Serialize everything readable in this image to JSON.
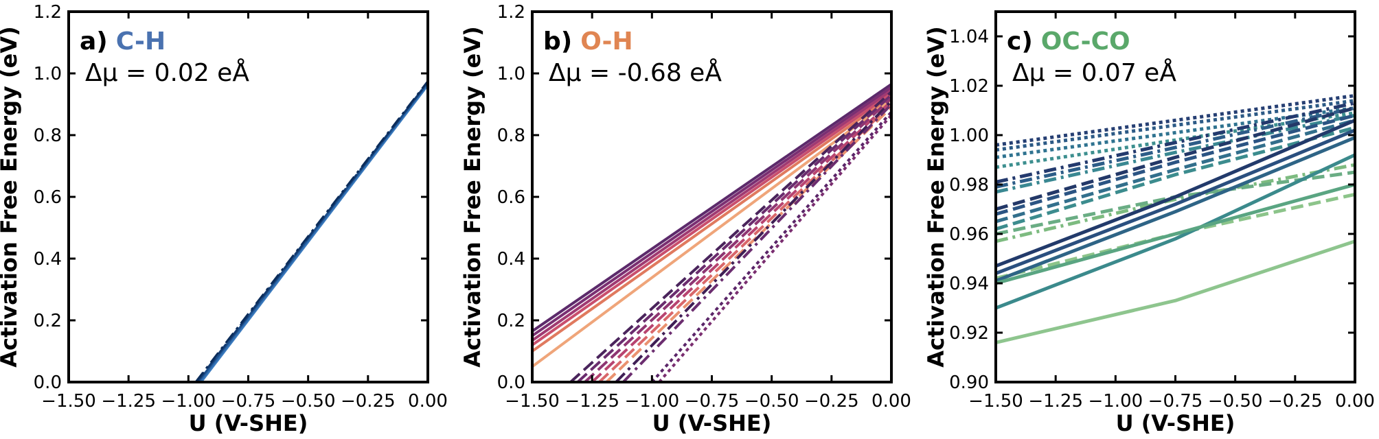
{
  "figure": {
    "panels": [
      {
        "id": "a",
        "letter": "a)",
        "bond": "C-H",
        "bond_color": "#4a72b0",
        "delta_mu": "Δμ = 0.02 eÅ",
        "ylabel": "Activation Free Energy (eV)",
        "xlabel": "U (V-SHE)"
      },
      {
        "id": "b",
        "letter": "b)",
        "bond": "O-H",
        "bond_color": "#e08552",
        "delta_mu": "Δμ = -0.68 eÅ",
        "ylabel": "Activation Free Energy (eV)",
        "xlabel": "U (V-SHE)"
      },
      {
        "id": "c",
        "letter": "c)",
        "bond": "OC-CO",
        "bond_color": "#5aa86a",
        "delta_mu": "Δμ = 0.07 eÅ",
        "ylabel": "Activation Free Energy (eV)",
        "xlabel": "U (V-SHE)"
      }
    ]
  },
  "chart_data": [
    {
      "type": "line",
      "panel": "a",
      "xlabel": "U (V-SHE)",
      "ylabel": "Activation Free Energy (eV)",
      "xlim": [
        -1.5,
        0.0
      ],
      "ylim": [
        0.0,
        1.2
      ],
      "xticks": [
        "−1.50",
        "−1.25",
        "−1.00",
        "−0.75",
        "−0.50",
        "−0.25",
        "0.00"
      ],
      "yticks": [
        "0.0",
        "0.2",
        "0.4",
        "0.6",
        "0.8",
        "1.0",
        "1.2"
      ],
      "grid": false,
      "series": [
        {
          "style": "solid",
          "color": "#3b7bbf",
          "width": 5,
          "x": [
            -0.95,
            0.0
          ],
          "y": [
            0.0,
            0.965
          ]
        },
        {
          "style": "solid",
          "color": "#2f6aab",
          "width": 4,
          "x": [
            -0.955,
            0.0
          ],
          "y": [
            0.0,
            0.968
          ]
        },
        {
          "style": "solid",
          "color": "#1c4f8c",
          "width": 3,
          "x": [
            -0.96,
            0.0
          ],
          "y": [
            0.0,
            0.97
          ]
        },
        {
          "style": "dashed",
          "color": "#123a70",
          "width": 3,
          "x": [
            -0.965,
            0.0
          ],
          "y": [
            0.0,
            0.972
          ]
        },
        {
          "style": "dashdot",
          "color": "#0b2c5a",
          "width": 3,
          "x": [
            -0.97,
            0.0
          ],
          "y": [
            0.0,
            0.975
          ]
        }
      ]
    },
    {
      "type": "line",
      "panel": "b",
      "xlabel": "U (V-SHE)",
      "ylabel": "Activation Free Energy (eV)",
      "xlim": [
        -1.5,
        0.0
      ],
      "ylim": [
        0.0,
        1.2
      ],
      "xticks": [
        "−1.50",
        "−1.25",
        "−1.00",
        "−0.75",
        "−0.50",
        "−0.25",
        "0.00"
      ],
      "yticks": [
        "0.0",
        "0.2",
        "0.4",
        "0.6",
        "0.8",
        "1.0",
        "1.2"
      ],
      "grid": false,
      "series": [
        {
          "style": "solid",
          "color": "#5c2a6b",
          "width": 4,
          "x": [
            -1.5,
            0.0
          ],
          "y": [
            0.165,
            0.965
          ]
        },
        {
          "style": "solid",
          "color": "#7a2f72",
          "width": 4,
          "x": [
            -1.5,
            0.0
          ],
          "y": [
            0.15,
            0.955
          ]
        },
        {
          "style": "solid",
          "color": "#a03a72",
          "width": 4,
          "x": [
            -1.5,
            0.0
          ],
          "y": [
            0.135,
            0.945
          ]
        },
        {
          "style": "solid",
          "color": "#c94f6d",
          "width": 4,
          "x": [
            -1.5,
            0.0
          ],
          "y": [
            0.12,
            0.935
          ]
        },
        {
          "style": "solid",
          "color": "#e07a5f",
          "width": 4,
          "x": [
            -1.5,
            0.0
          ],
          "y": [
            0.1,
            0.925
          ]
        },
        {
          "style": "solid",
          "color": "#efa57a",
          "width": 4,
          "x": [
            -1.5,
            0.0
          ],
          "y": [
            0.05,
            0.915
          ]
        },
        {
          "style": "dashed",
          "color": "#4a245c",
          "width": 4,
          "x": [
            -1.34,
            0.0
          ],
          "y": [
            0.0,
            0.94
          ]
        },
        {
          "style": "dashed",
          "color": "#6a2c6e",
          "width": 4,
          "x": [
            -1.31,
            0.0
          ],
          "y": [
            0.0,
            0.93
          ]
        },
        {
          "style": "dashed",
          "color": "#8e3572",
          "width": 4,
          "x": [
            -1.28,
            0.0
          ],
          "y": [
            0.0,
            0.92
          ]
        },
        {
          "style": "dashed",
          "color": "#b84470",
          "width": 4,
          "x": [
            -1.25,
            0.0
          ],
          "y": [
            0.0,
            0.91
          ]
        },
        {
          "style": "dashed",
          "color": "#d9676a",
          "width": 4,
          "x": [
            -1.22,
            0.0
          ],
          "y": [
            0.0,
            0.9
          ]
        },
        {
          "style": "dashed",
          "color": "#ea9270",
          "width": 4,
          "x": [
            -1.19,
            0.0
          ],
          "y": [
            0.0,
            0.89
          ]
        },
        {
          "style": "dashdot",
          "color": "#3f1f55",
          "width": 4,
          "x": [
            -1.15,
            0.0
          ],
          "y": [
            0.0,
            0.91
          ]
        },
        {
          "style": "dashdot",
          "color": "#6b2d6f",
          "width": 4,
          "x": [
            -1.12,
            0.0
          ],
          "y": [
            0.0,
            0.9
          ]
        },
        {
          "style": "dotted",
          "color": "#5a2568",
          "width": 4,
          "x": [
            -1.0,
            0.0
          ],
          "y": [
            0.0,
            0.875
          ]
        },
        {
          "style": "dotted",
          "color": "#7a2e70",
          "width": 4,
          "x": [
            -0.97,
            0.0
          ],
          "y": [
            0.0,
            0.865
          ]
        }
      ]
    },
    {
      "type": "line",
      "panel": "c",
      "xlabel": "U (V-SHE)",
      "ylabel": "Activation Free Energy (eV)",
      "xlim": [
        -1.5,
        0.0
      ],
      "ylim": [
        0.9,
        1.05
      ],
      "xticks": [
        "−1.50",
        "−1.25",
        "−1.00",
        "−0.75",
        "−0.50",
        "−0.25",
        "0.00"
      ],
      "yticks": [
        "0.90",
        "0.92",
        "0.94",
        "0.96",
        "0.98",
        "1.00",
        "1.02",
        "1.04"
      ],
      "grid": false,
      "series": [
        {
          "style": "dotted",
          "color": "#263f73",
          "width": 5,
          "x": [
            -1.5,
            -0.75,
            0.0
          ],
          "y": [
            0.996,
            1.006,
            1.016
          ]
        },
        {
          "style": "dotted",
          "color": "#2c5a86",
          "width": 5,
          "x": [
            -1.5,
            -0.75,
            0.0
          ],
          "y": [
            0.994,
            1.004,
            1.014
          ]
        },
        {
          "style": "dotted",
          "color": "#2f7390",
          "width": 5,
          "x": [
            -1.5,
            -0.75,
            0.0
          ],
          "y": [
            0.991,
            1.001,
            1.011
          ]
        },
        {
          "style": "dotted",
          "color": "#3d8f8f",
          "width": 5,
          "x": [
            -1.5,
            -0.75,
            0.0
          ],
          "y": [
            0.987,
            0.998,
            1.009
          ]
        },
        {
          "style": "dashdot",
          "color": "#243a6e",
          "width": 5,
          "x": [
            -1.5,
            -0.75,
            0.0
          ],
          "y": [
            0.981,
            0.997,
            1.013
          ]
        },
        {
          "style": "dashdot",
          "color": "#2d5d88",
          "width": 5,
          "x": [
            -1.5,
            -0.75,
            0.0
          ],
          "y": [
            0.979,
            0.995,
            1.011
          ]
        },
        {
          "style": "dashdot",
          "color": "#3a8892",
          "width": 5,
          "x": [
            -1.5,
            -0.75,
            0.0
          ],
          "y": [
            0.977,
            0.993,
            1.008
          ]
        },
        {
          "style": "dashdot",
          "color": "#7dbb80",
          "width": 5,
          "x": [
            -1.5,
            -0.75,
            0.0
          ],
          "y": [
            0.957,
            0.974,
            0.988
          ]
        },
        {
          "style": "dashed",
          "color": "#233868",
          "width": 5,
          "x": [
            -1.5,
            -0.75,
            0.0
          ],
          "y": [
            0.97,
            0.991,
            1.011
          ]
        },
        {
          "style": "dashed",
          "color": "#2b5483",
          "width": 5,
          "x": [
            -1.5,
            -0.75,
            0.0
          ],
          "y": [
            0.968,
            0.989,
            1.008
          ]
        },
        {
          "style": "dashed",
          "color": "#326f8c",
          "width": 5,
          "x": [
            -1.5,
            -0.75,
            0.0
          ],
          "y": [
            0.965,
            0.986,
            1.006
          ]
        },
        {
          "style": "dashed",
          "color": "#3c8c8e",
          "width": 5,
          "x": [
            -1.5,
            -0.75,
            0.0
          ],
          "y": [
            0.962,
            0.984,
            1.003
          ]
        },
        {
          "style": "dashed",
          "color": "#6aad84",
          "width": 5,
          "x": [
            -1.5,
            -0.75,
            0.0
          ],
          "y": [
            0.96,
            0.975,
            0.985
          ]
        },
        {
          "style": "dashed",
          "color": "#8cc48a",
          "width": 5,
          "x": [
            -1.5,
            -0.75,
            0.0
          ],
          "y": [
            0.942,
            0.96,
            0.976
          ]
        },
        {
          "style": "solid",
          "color": "#223a6b",
          "width": 5,
          "x": [
            -1.5,
            -0.75,
            0.0
          ],
          "y": [
            0.947,
            0.975,
            1.006
          ]
        },
        {
          "style": "solid",
          "color": "#2a4f7f",
          "width": 5,
          "x": [
            -1.5,
            -0.75,
            0.0
          ],
          "y": [
            0.944,
            0.972,
            1.002
          ]
        },
        {
          "style": "solid",
          "color": "#2e6486",
          "width": 5,
          "x": [
            -1.5,
            -0.75,
            0.0
          ],
          "y": [
            0.941,
            0.969,
            0.999
          ]
        },
        {
          "style": "solid",
          "color": "#3b8a8c",
          "width": 5,
          "x": [
            -1.5,
            -0.75,
            0.0
          ],
          "y": [
            0.93,
            0.958,
            0.992
          ]
        },
        {
          "style": "solid",
          "color": "#5aa582",
          "width": 5,
          "x": [
            -1.5,
            -0.75,
            0.0
          ],
          "y": [
            0.94,
            0.96,
            0.98
          ]
        },
        {
          "style": "solid",
          "color": "#8ec58e",
          "width": 5,
          "x": [
            -1.5,
            -0.75,
            0.0
          ],
          "y": [
            0.916,
            0.933,
            0.957
          ]
        }
      ]
    }
  ]
}
